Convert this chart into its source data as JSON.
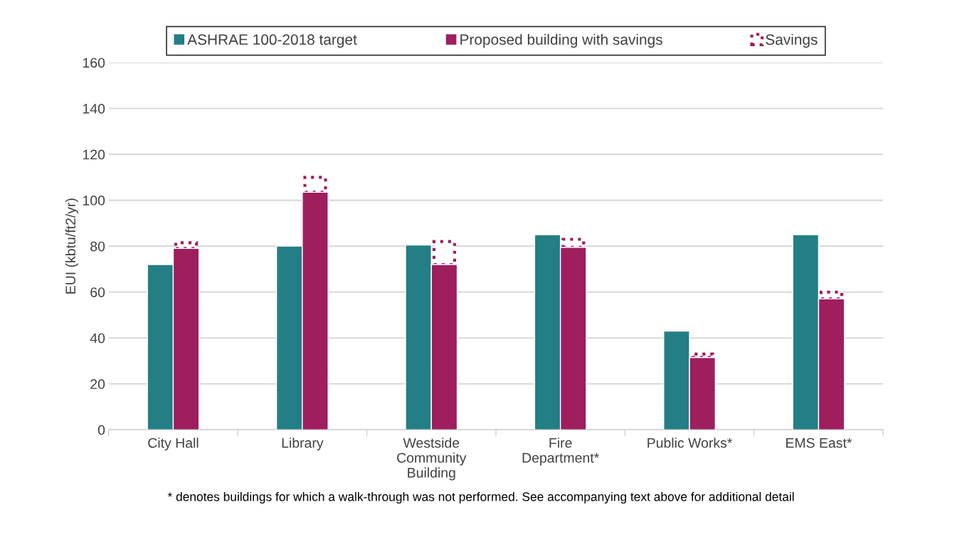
{
  "chart_data": {
    "type": "bar",
    "ylabel": "EUI (kbtu/ft2/yr)",
    "categories": [
      "City Hall",
      "Library",
      "Westside\nCommunity\nBuilding",
      "Fire\nDepartment*",
      "Public Works*",
      "EMS East*"
    ],
    "series": [
      {
        "name": "ASHRAE 100-2018 target",
        "color": "#237f85",
        "values": [
          72,
          80,
          80.5,
          85,
          43,
          85
        ]
      },
      {
        "name": "Proposed building with savings",
        "color": "#9e1e5e",
        "values": [
          79,
          103.5,
          72,
          79.5,
          31.5,
          57
        ]
      },
      {
        "name": "Savings",
        "color": "#9e1e5e",
        "line_style": "dotted",
        "base": [
          79,
          103.5,
          72,
          79.5,
          31.5,
          57
        ],
        "values": [
          2.5,
          6.5,
          10,
          3.5,
          1.5,
          3
        ]
      }
    ],
    "ylim": [
      0,
      160
    ],
    "yticks": [
      0,
      20,
      40,
      60,
      80,
      100,
      120,
      140,
      160
    ],
    "grid": "y",
    "legend": "top",
    "annotations": [
      "* denotes buildings for which a walk-through was not performed. See accompanying text above for additional detail"
    ]
  }
}
